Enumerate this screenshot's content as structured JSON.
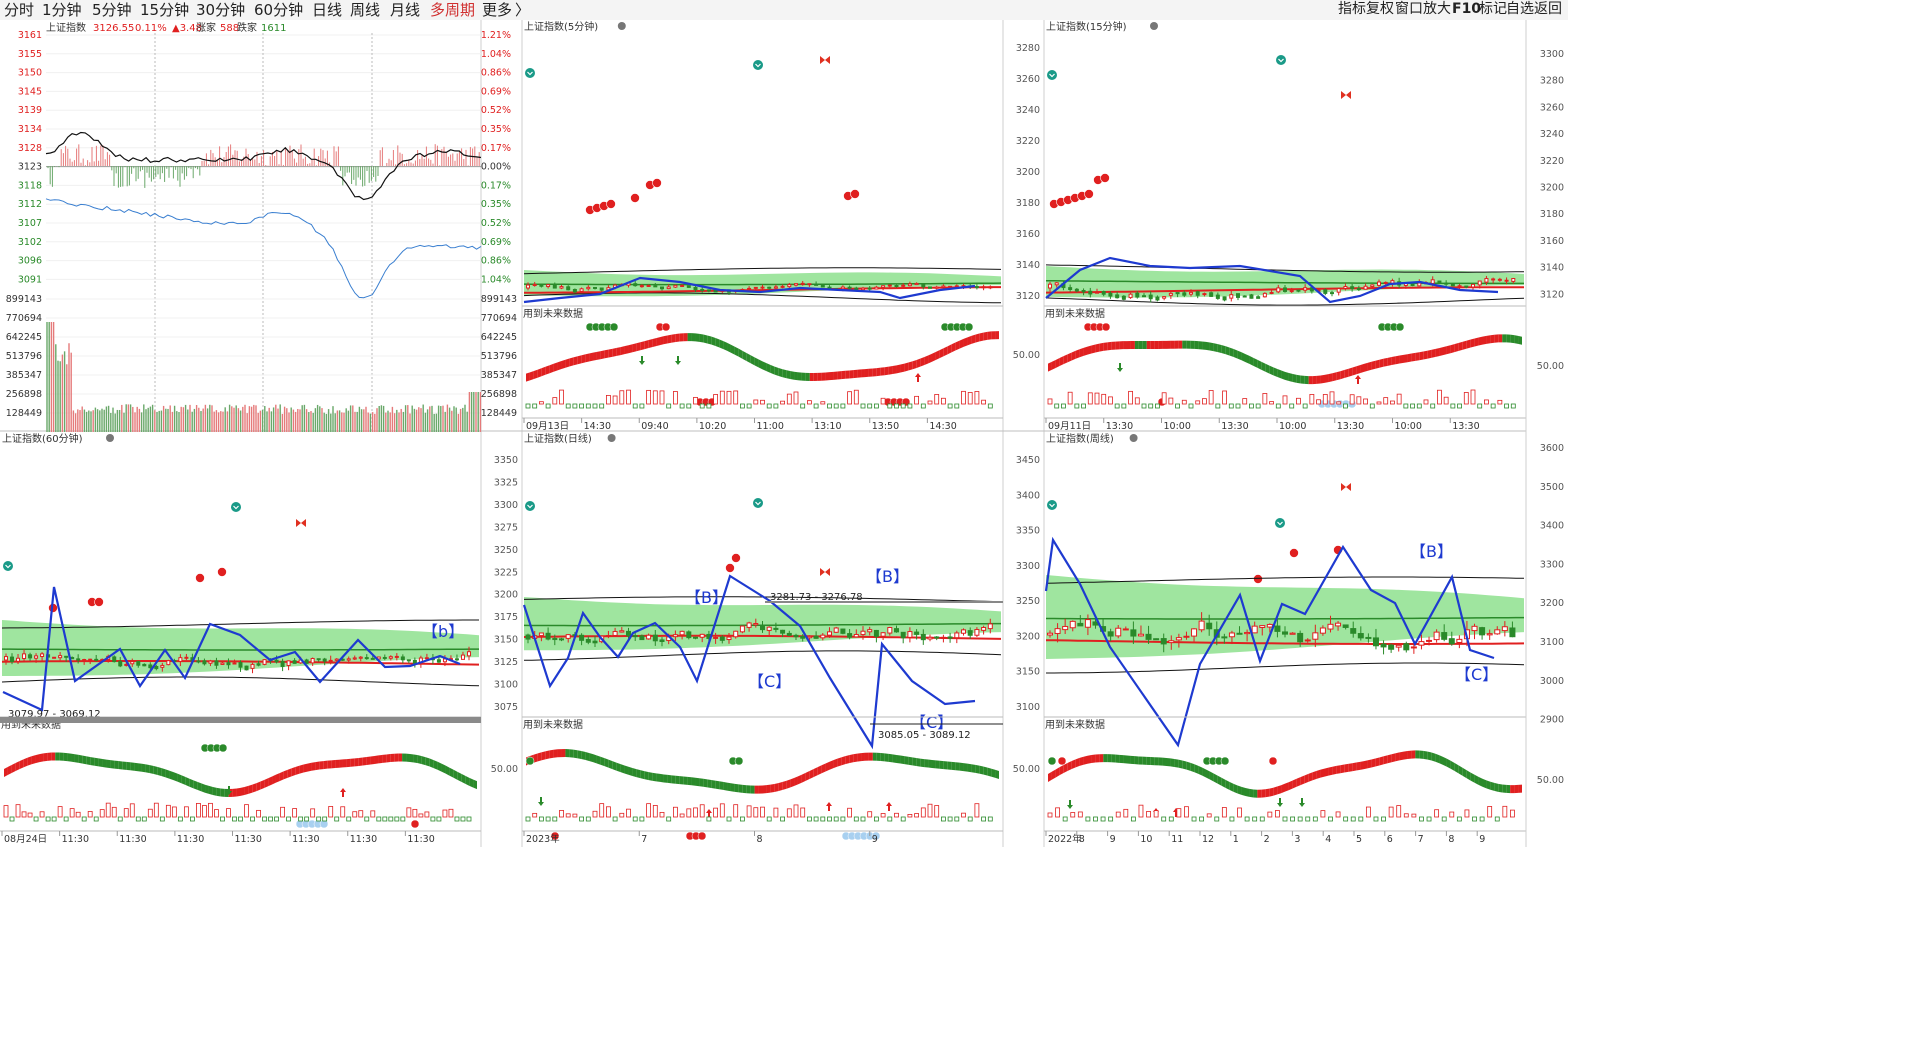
{
  "toolbar": {
    "periods": [
      "分时",
      "1分钟",
      "5分钟",
      "15分钟",
      "30分钟",
      "60分钟",
      "日线",
      "周线",
      "月线",
      "多周期",
      "更多"
    ],
    "active": "多周期",
    "more_caret": "〉",
    "right_buttons": [
      "指标",
      "复权",
      "窗口",
      "放大",
      "F10",
      "标记",
      "自选",
      "返回"
    ]
  },
  "timeshare": {
    "title": "上证指数",
    "price": "3126.55",
    "pct": "0.11%",
    "change": "▲3.48",
    "up_label": "涨家",
    "up_count": "588",
    "down_label": "跌家",
    "down_count": "1611",
    "price_ticks": [
      "3161",
      "3155",
      "3150",
      "3145",
      "3139",
      "3134",
      "3128",
      "3123",
      "3118",
      "3112",
      "3107",
      "3102",
      "3096",
      "3091"
    ],
    "pct_ticks": [
      "1.21%",
      "1.04%",
      "0.86%",
      "0.69%",
      "0.52%",
      "0.35%",
      "0.17%",
      "0.00%",
      "0.17%",
      "0.35%",
      "0.52%",
      "0.69%",
      "0.86%",
      "1.04%"
    ],
    "vol_ticks": [
      "899143",
      "770694",
      "642245",
      "513796",
      "385347",
      "256898",
      "128449"
    ]
  },
  "panels": [
    {
      "id": "5min",
      "title": "上证指数(5分钟)",
      "y_ticks": [],
      "notice": "用到未来数据",
      "x_labels": [
        "09月13日",
        "14:30",
        "09:40",
        "10:20",
        "11:00",
        "13:10",
        "13:50",
        "14:30"
      ],
      "osc_label": ""
    },
    {
      "id": "15min",
      "title": "上证指数(15分钟)",
      "y_ticks": [
        "3280",
        "3260",
        "3240",
        "3220",
        "3200",
        "3180",
        "3160",
        "3140",
        "3120"
      ],
      "notice": "用到未来数据",
      "x_labels": [
        "09月11日",
        "13:30",
        "10:00",
        "13:30",
        "10:00",
        "13:30",
        "10:00",
        "13:30"
      ],
      "osc_label": "50.00"
    },
    {
      "id": "60min",
      "title": "上证指数(60分钟)",
      "y_ticks": [],
      "notice": "用到未来数据",
      "x_labels": [
        "08月24日",
        "11:30",
        "11:30",
        "11:30",
        "11:30",
        "11:30",
        "11:30",
        "11:30"
      ],
      "annotations": [
        "【b】",
        "3079.97 - 3069.12"
      ],
      "osc_label": ""
    },
    {
      "id": "day",
      "title": "上证指数(日线)",
      "y_ticks": [
        "3350",
        "3325",
        "3300",
        "3275",
        "3250",
        "3225",
        "3200",
        "3175",
        "3150",
        "3125",
        "3100",
        "3075"
      ],
      "notice": "用到未来数据",
      "x_labels": [
        "2023年",
        "7",
        "8",
        "9"
      ],
      "annotations": [
        "【B】",
        "【B】",
        "【C】",
        "【C】",
        "3281.73 - 3276.78",
        "3085.05 - 3089.12"
      ],
      "osc_label": "50.00"
    },
    {
      "id": "week",
      "title": "上证指数(周线)",
      "y_ticks": [
        "3450",
        "3400",
        "3350",
        "3300",
        "3250",
        "3200",
        "3150",
        "3100"
      ],
      "notice": "用到未来数据",
      "x_labels": [
        "2022年",
        "8",
        "9",
        "10",
        "11",
        "12",
        "1",
        "2",
        "3",
        "4",
        "5",
        "6",
        "7",
        "8",
        "9"
      ],
      "annotations": [
        "【B】",
        "【C】"
      ],
      "osc_label": "50.00"
    }
  ],
  "right_scale": {
    "ticks_top": [
      "3300",
      "3280",
      "3260",
      "3240",
      "3220",
      "3200",
      "3180",
      "3160",
      "3140",
      "3120"
    ],
    "label_mid_top": "50.00",
    "ticks_bottom": [
      "3600",
      "3500",
      "3400",
      "3300",
      "3200",
      "3100",
      "3000",
      "2900"
    ],
    "label_mid_bottom": "50.00"
  },
  "colors": {
    "up": "#e02020",
    "down": "#2a8a2a",
    "zigzag": "#1e3ad0",
    "band": "#7fdc7f",
    "band_blue": "#a8d8f0",
    "bg": "#ffffff",
    "grid": "#e6e6e6",
    "axis_text": "#d03030",
    "axis_text_green": "#2a8a2a",
    "icon_teal": "#1a9a88"
  }
}
